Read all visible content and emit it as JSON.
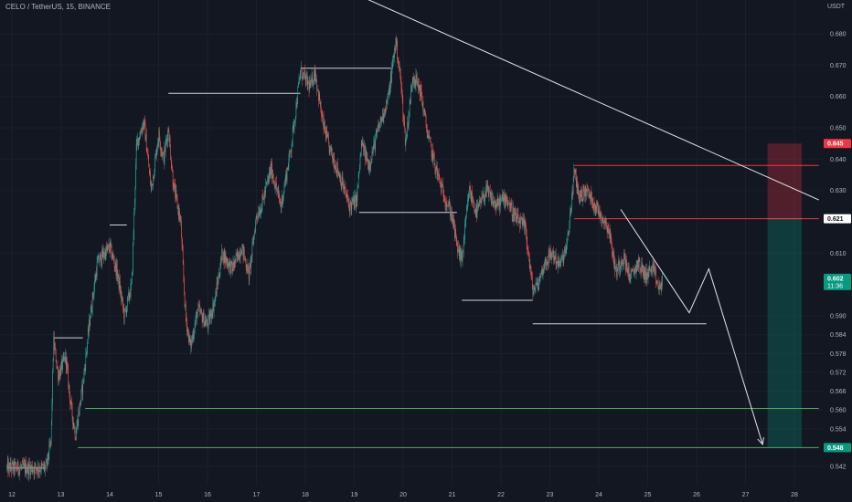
{
  "header": {
    "symbol_text": "CELO / TetherUS, 15, BINANCE"
  },
  "price_axis": {
    "currency": "USDT",
    "ticks": [
      "0.680",
      "0.670",
      "0.660",
      "0.650",
      "0.640",
      "0.630",
      "0.610",
      "0.590",
      "0.584",
      "0.578",
      "0.572",
      "0.566",
      "0.560",
      "0.554",
      "0.542"
    ]
  },
  "time_axis": {
    "ticks": [
      "12",
      "13",
      "14",
      "15",
      "16",
      "17",
      "18",
      "19",
      "20",
      "21",
      "22",
      "23",
      "24",
      "25",
      "26",
      "27",
      "28"
    ]
  },
  "price_tags": {
    "stop": {
      "value": "0.645",
      "color": "#f23645"
    },
    "entry": {
      "value": "0.621",
      "color": "#ffffff"
    },
    "current": {
      "value": "0.602",
      "countdown": "11:36",
      "color": "#089981"
    },
    "target": {
      "value": "0.548",
      "color": "#089981"
    }
  },
  "chart_data": {
    "type": "candlestick",
    "title": "CELO / TetherUS, 15, BINANCE",
    "price_unit": "USDT",
    "x_range_days": [
      12,
      28.5
    ],
    "y_range": [
      0.538,
      0.693
    ],
    "price_path": [
      [
        11.9,
        0.5415
      ],
      [
        12.7,
        0.5415
      ],
      [
        12.8,
        0.55
      ],
      [
        12.85,
        0.582
      ],
      [
        12.95,
        0.571
      ],
      [
        13.1,
        0.577
      ],
      [
        13.2,
        0.562
      ],
      [
        13.3,
        0.552
      ],
      [
        13.45,
        0.568
      ],
      [
        13.6,
        0.59
      ],
      [
        13.75,
        0.607
      ],
      [
        14.0,
        0.612
      ],
      [
        14.15,
        0.604
      ],
      [
        14.3,
        0.59
      ],
      [
        14.45,
        0.6
      ],
      [
        14.55,
        0.645
      ],
      [
        14.7,
        0.652
      ],
      [
        14.85,
        0.63
      ],
      [
        15.0,
        0.648
      ],
      [
        15.1,
        0.64
      ],
      [
        15.2,
        0.65
      ],
      [
        15.3,
        0.632
      ],
      [
        15.45,
        0.62
      ],
      [
        15.55,
        0.59
      ],
      [
        15.65,
        0.58
      ],
      [
        15.8,
        0.592
      ],
      [
        16.0,
        0.587
      ],
      [
        16.15,
        0.595
      ],
      [
        16.3,
        0.61
      ],
      [
        16.5,
        0.605
      ],
      [
        16.7,
        0.612
      ],
      [
        16.85,
        0.603
      ],
      [
        17.0,
        0.622
      ],
      [
        17.1,
        0.625
      ],
      [
        17.3,
        0.637
      ],
      [
        17.5,
        0.625
      ],
      [
        17.7,
        0.643
      ],
      [
        17.9,
        0.668
      ],
      [
        18.1,
        0.663
      ],
      [
        18.2,
        0.668
      ],
      [
        18.35,
        0.652
      ],
      [
        18.5,
        0.643
      ],
      [
        18.7,
        0.635
      ],
      [
        18.9,
        0.625
      ],
      [
        19.05,
        0.627
      ],
      [
        19.15,
        0.645
      ],
      [
        19.3,
        0.638
      ],
      [
        19.5,
        0.65
      ],
      [
        19.7,
        0.66
      ],
      [
        19.85,
        0.678
      ],
      [
        19.95,
        0.665
      ],
      [
        20.05,
        0.645
      ],
      [
        20.2,
        0.667
      ],
      [
        20.35,
        0.662
      ],
      [
        20.5,
        0.648
      ],
      [
        20.65,
        0.638
      ],
      [
        20.8,
        0.63
      ],
      [
        21.0,
        0.622
      ],
      [
        21.1,
        0.612
      ],
      [
        21.2,
        0.608
      ],
      [
        21.35,
        0.63
      ],
      [
        21.5,
        0.623
      ],
      [
        21.7,
        0.63
      ],
      [
        21.9,
        0.625
      ],
      [
        22.1,
        0.628
      ],
      [
        22.3,
        0.621
      ],
      [
        22.5,
        0.618
      ],
      [
        22.65,
        0.598
      ],
      [
        22.75,
        0.6
      ],
      [
        22.9,
        0.607
      ],
      [
        23.05,
        0.61
      ],
      [
        23.2,
        0.606
      ],
      [
        23.35,
        0.612
      ],
      [
        23.5,
        0.636
      ],
      [
        23.6,
        0.628
      ],
      [
        23.75,
        0.63
      ],
      [
        23.9,
        0.626
      ],
      [
        24.05,
        0.622
      ],
      [
        24.2,
        0.618
      ],
      [
        24.35,
        0.604
      ],
      [
        24.5,
        0.609
      ],
      [
        24.65,
        0.602
      ],
      [
        24.8,
        0.607
      ],
      [
        24.95,
        0.603
      ],
      [
        25.1,
        0.605
      ],
      [
        25.25,
        0.598
      ],
      [
        25.3,
        0.602
      ]
    ],
    "trendline": {
      "from": [
        18.98,
        0.693
      ],
      "to": [
        28.5,
        0.627
      ]
    },
    "horizontal_levels": [
      {
        "price": 0.5415,
        "from": 11.9,
        "to": 12.7,
        "color": "#d1d4dc"
      },
      {
        "price": 0.583,
        "from": 12.85,
        "to": 13.45,
        "color": "#d1d4dc"
      },
      {
        "price": 0.619,
        "from": 14.0,
        "to": 14.35,
        "color": "#d1d4dc"
      },
      {
        "price": 0.661,
        "from": 15.2,
        "to": 17.9,
        "color": "#d1d4dc"
      },
      {
        "price": 0.669,
        "from": 17.9,
        "to": 19.75,
        "color": "#d1d4dc"
      },
      {
        "price": 0.623,
        "from": 19.1,
        "to": 21.1,
        "color": "#d1d4dc"
      },
      {
        "price": 0.595,
        "from": 21.2,
        "to": 22.65,
        "color": "#d1d4dc"
      },
      {
        "price": 0.5875,
        "from": 22.65,
        "to": 26.2,
        "color": "#d1d4dc"
      },
      {
        "price": 0.638,
        "from": 23.5,
        "to": 28.5,
        "color": "#f23645"
      },
      {
        "price": 0.621,
        "from": 23.5,
        "to": 28.5,
        "color": "#f23645"
      },
      {
        "price": 0.5605,
        "from": 13.5,
        "to": 28.5,
        "color": "#4caf50"
      },
      {
        "price": 0.548,
        "from": 13.35,
        "to": 28.5,
        "color": "#4caf50"
      }
    ],
    "projection_path": [
      [
        24.45,
        0.624
      ],
      [
        25.85,
        0.591
      ],
      [
        26.25,
        0.605
      ],
      [
        27.35,
        0.549
      ]
    ],
    "position": {
      "type": "short",
      "x_from": 27.45,
      "x_to": 28.15,
      "entry": 0.621,
      "stop": 0.645,
      "target": 0.548
    }
  }
}
